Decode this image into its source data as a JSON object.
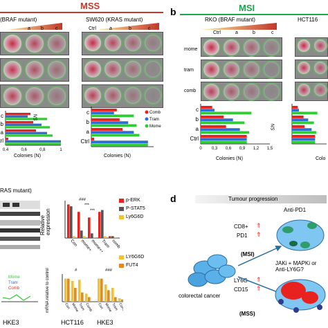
{
  "panel_a": {
    "header": "MSS",
    "cell_left": "(BRAF mutant)",
    "cell_right": "SW620 (KRAS mutant)",
    "col_labels": [
      "a",
      "b",
      "c"
    ],
    "col_labels_sw620": [
      "Ctrl",
      "a",
      "b",
      "c"
    ],
    "ns": "NS",
    "xlabel": "Colonies (N)"
  },
  "panel_b": {
    "letter": "b",
    "header": "MSI",
    "cell_left": "RKO (BRAF mutant)",
    "cell_right": "HCT116",
    "col_labels": [
      "Ctrl",
      "a",
      "b",
      "c"
    ],
    "rows": [
      "mome",
      "tram",
      "comb"
    ],
    "ns": "NS",
    "xlabel": "Colonies (N)",
    "xlabel_right": "Colo"
  },
  "panel_c": {
    "kras_text": "RAS mutant)",
    "bands": [
      "p-ERK",
      "P-STAT5",
      "Ly6G6D"
    ],
    "legend2": [
      "LY6G6D",
      "FUT4"
    ],
    "ylabel_top": "Relative expression",
    "ylabel_bottom": "mRNA relative to control",
    "cats": [
      "Con",
      "mome+",
      "mome++",
      "Tram",
      "comb"
    ],
    "sig_top": [
      "###",
      "***",
      "***"
    ],
    "sig_bottom": [
      "#",
      "###"
    ],
    "cell_lines": [
      "HCT116",
      "HKE3"
    ],
    "left_legend": [
      "Mome",
      "Tram",
      "Comb"
    ],
    "left_xlabel": "HKE3"
  },
  "panel_d": {
    "letter": "d",
    "progression": "Tumour progression",
    "anti_pd1": "Anti-PD1",
    "msi_markers": [
      "CD8+",
      "PD1"
    ],
    "msi": "(MSI)",
    "mss_markers": [
      "LY6G",
      "CD15"
    ],
    "mss": "(MSS)",
    "crc": "colorectal cancer",
    "question": "JAKi + MAPKi or Anti-LY6G?"
  },
  "chart_data": [
    {
      "type": "bar",
      "title": "",
      "categories": [
        "Ctrl",
        "a",
        "b",
        "c"
      ],
      "series": [
        {
          "name": "Comb",
          "values": [
            0.05,
            0.55,
            0.5,
            0.45
          ]
        },
        {
          "name": "Tram",
          "values": [
            1.0,
            0.75,
            0.65,
            0.4
          ]
        },
        {
          "name": "Mome",
          "values": [
            1.0,
            0.85,
            0.8,
            0.75
          ]
        }
      ],
      "xlabel": "Colonies (N)",
      "xlim": [
        0,
        1
      ]
    },
    {
      "type": "bar",
      "title": "",
      "categories": [
        "Ctrl",
        "a",
        "b",
        "c"
      ],
      "series": [
        {
          "name": "Comb",
          "values": [
            1.0,
            0.55,
            0.5,
            0.25
          ]
        },
        {
          "name": "Tram",
          "values": [
            1.0,
            0.85,
            0.7,
            0.3
          ]
        },
        {
          "name": "Mome",
          "values": [
            1.0,
            1.05,
            0.95,
            1.1
          ]
        }
      ],
      "xlabel": "Colonies (N)",
      "xticks": [
        "0",
        "0,3",
        "0,6",
        "0,9",
        "1,2",
        "1,5"
      ],
      "xlim": [
        0,
        1.5
      ]
    },
    {
      "type": "bar",
      "title": "",
      "categories": [
        "Con",
        "mome+",
        "mome++",
        "Tram",
        "comb"
      ],
      "series": [
        {
          "name": "p-ERK",
          "values": [
            3.6,
            2.8,
            2.2,
            2.8,
            0.2
          ]
        },
        {
          "name": "P-STAT5",
          "values": [
            3.4,
            0.8,
            0.5,
            3.0,
            0.2
          ]
        },
        {
          "name": "Ly6G6D",
          "values": [
            0.2,
            0.2,
            0.1,
            0.2,
            0.1
          ]
        }
      ],
      "ylabel": "Relative expression"
    },
    {
      "type": "bar",
      "title": "",
      "categories": [
        "Con",
        "Mome",
        "Tram",
        "Comb",
        "Con",
        "Mome",
        "Tram",
        "Comb"
      ],
      "series": [
        {
          "name": "LY6G6D",
          "values": [
            1.0,
            0.9,
            0.95,
            0.35,
            1.0,
            0.75,
            0.6,
            0.15
          ]
        },
        {
          "name": "FUT4",
          "values": [
            1.0,
            0.6,
            0.4,
            0.2,
            1.0,
            0.5,
            0.2,
            0.1
          ]
        }
      ],
      "ylabel": "mRNA relative to control"
    }
  ],
  "colors": {
    "mss": "#c0392b",
    "msi": "#1aa64a",
    "comb": "#e8231f",
    "tram": "#2f6fd0",
    "mome": "#35c93a",
    "dark": "#555555",
    "yellow": "#f2c230",
    "orange": "#e8891f"
  }
}
